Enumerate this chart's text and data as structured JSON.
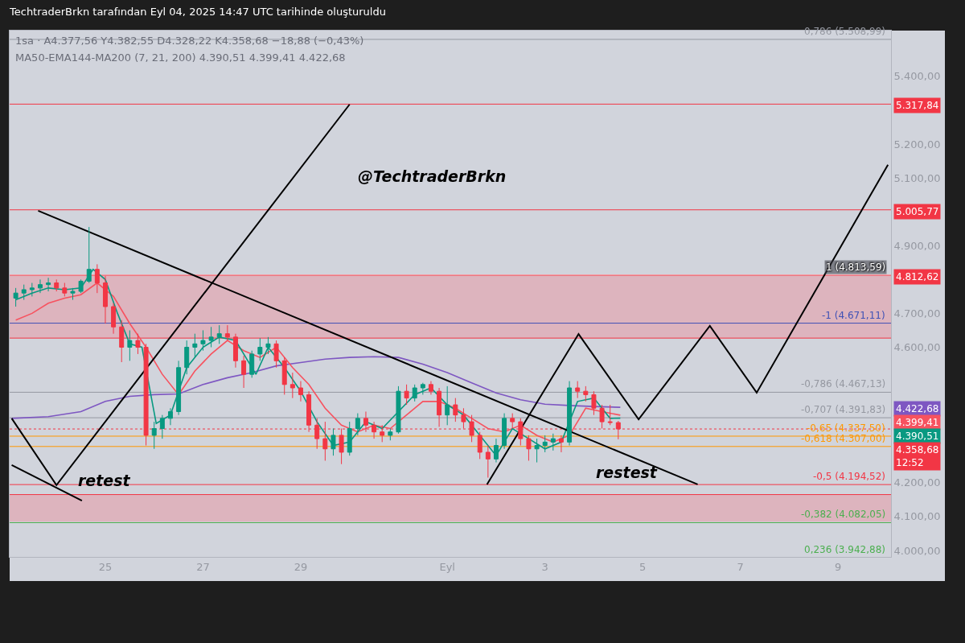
{
  "chart_data": {
    "type": "candlestick",
    "title": "TechtraderBrkn tarafından Eyl 04, 2025 14:47 UTC tarihinde oluşturuldu",
    "x": [
      "2025-08-23T04:00",
      "2025-08-23T08:00",
      "2025-08-23T12:00",
      "2025-08-23T16:00",
      "2025-08-23T20:00",
      "2025-08-24T00:00",
      "2025-08-24T04:00",
      "2025-08-24T08:00",
      "2025-08-24T12:00",
      "2025-08-24T16:00",
      "2025-08-24T20:00",
      "2025-08-25T00:00",
      "2025-08-25T04:00",
      "2025-08-25T08:00",
      "2025-08-25T12:00",
      "2025-08-25T16:00",
      "2025-08-25T20:00",
      "2025-08-26T00:00",
      "2025-08-26T04:00",
      "2025-08-26T08:00",
      "2025-08-26T12:00",
      "2025-08-26T16:00",
      "2025-08-26T20:00",
      "2025-08-27T00:00",
      "2025-08-27T04:00",
      "2025-08-27T08:00",
      "2025-08-27T12:00",
      "2025-08-27T16:00",
      "2025-08-27T20:00",
      "2025-08-28T00:00",
      "2025-08-28T04:00",
      "2025-08-28T08:00",
      "2025-08-28T12:00",
      "2025-08-28T16:00",
      "2025-08-28T20:00",
      "2025-08-29T00:00",
      "2025-08-29T04:00",
      "2025-08-29T08:00",
      "2025-08-29T12:00",
      "2025-08-29T16:00",
      "2025-08-29T20:00",
      "2025-08-30T00:00",
      "2025-08-30T04:00",
      "2025-08-30T08:00",
      "2025-08-30T12:00",
      "2025-08-30T16:00",
      "2025-08-30T20:00",
      "2025-08-31T00:00",
      "2025-08-31T04:00",
      "2025-08-31T08:00",
      "2025-08-31T12:00",
      "2025-08-31T16:00",
      "2025-08-31T20:00",
      "2025-09-01T00:00",
      "2025-09-01T04:00",
      "2025-09-01T08:00",
      "2025-09-01T12:00",
      "2025-09-01T16:00",
      "2025-09-01T20:00",
      "2025-09-02T00:00",
      "2025-09-02T04:00",
      "2025-09-02T08:00",
      "2025-09-02T12:00",
      "2025-09-02T16:00",
      "2025-09-02T20:00",
      "2025-09-03T00:00",
      "2025-09-03T04:00",
      "2025-09-03T08:00",
      "2025-09-03T12:00",
      "2025-09-03T16:00",
      "2025-09-03T20:00",
      "2025-09-04T00:00",
      "2025-09-04T04:00",
      "2025-09-04T08:00",
      "2025-09-04T12:00"
    ],
    "ohlc": [
      [
        4745,
        4775,
        4720,
        4760
      ],
      [
        4760,
        4785,
        4740,
        4770
      ],
      [
        4770,
        4790,
        4750,
        4775
      ],
      [
        4775,
        4800,
        4760,
        4785
      ],
      [
        4785,
        4805,
        4765,
        4790
      ],
      [
        4790,
        4800,
        4765,
        4775
      ],
      [
        4775,
        4790,
        4750,
        4760
      ],
      [
        4760,
        4775,
        4740,
        4765
      ],
      [
        4765,
        4800,
        4760,
        4795
      ],
      [
        4795,
        4955,
        4790,
        4830
      ],
      [
        4830,
        4845,
        4760,
        4790
      ],
      [
        4790,
        4810,
        4670,
        4720
      ],
      [
        4720,
        4730,
        4640,
        4660
      ],
      [
        4660,
        4680,
        4556,
        4600
      ],
      [
        4600,
        4650,
        4560,
        4620
      ],
      [
        4620,
        4640,
        4580,
        4600
      ],
      [
        4600,
        4610,
        4310,
        4340
      ],
      [
        4340,
        4380,
        4300,
        4360
      ],
      [
        4360,
        4400,
        4330,
        4390
      ],
      [
        4390,
        4420,
        4370,
        4410
      ],
      [
        4410,
        4560,
        4400,
        4540
      ],
      [
        4540,
        4620,
        4520,
        4600
      ],
      [
        4600,
        4640,
        4570,
        4610
      ],
      [
        4610,
        4650,
        4590,
        4620
      ],
      [
        4620,
        4660,
        4600,
        4630
      ],
      [
        4630,
        4665,
        4610,
        4640
      ],
      [
        4640,
        4665,
        4620,
        4630
      ],
      [
        4630,
        4640,
        4540,
        4560
      ],
      [
        4560,
        4575,
        4480,
        4520
      ],
      [
        4520,
        4590,
        4510,
        4580
      ],
      [
        4580,
        4627,
        4560,
        4600
      ],
      [
        4600,
        4630,
        4580,
        4610
      ],
      [
        4610,
        4620,
        4540,
        4560
      ],
      [
        4560,
        4570,
        4460,
        4490
      ],
      [
        4490,
        4525,
        4450,
        4480
      ],
      [
        4480,
        4500,
        4440,
        4460
      ],
      [
        4460,
        4470,
        4350,
        4370
      ],
      [
        4370,
        4390,
        4300,
        4330
      ],
      [
        4330,
        4380,
        4265,
        4300
      ],
      [
        4300,
        4360,
        4280,
        4340
      ],
      [
        4340,
        4360,
        4255,
        4290
      ],
      [
        4290,
        4380,
        4280,
        4360
      ],
      [
        4360,
        4405,
        4340,
        4390
      ],
      [
        4390,
        4410,
        4350,
        4370
      ],
      [
        4370,
        4380,
        4330,
        4350
      ],
      [
        4350,
        4370,
        4320,
        4340
      ],
      [
        4340,
        4360,
        4325,
        4350
      ],
      [
        4350,
        4485,
        4345,
        4470
      ],
      [
        4470,
        4490,
        4430,
        4450
      ],
      [
        4450,
        4490,
        4440,
        4480
      ],
      [
        4480,
        4495,
        4460,
        4490
      ],
      [
        4490,
        4500,
        4460,
        4470
      ],
      [
        4470,
        4480,
        4365,
        4400
      ],
      [
        4400,
        4485,
        4370,
        4430
      ],
      [
        4430,
        4450,
        4380,
        4400
      ],
      [
        4400,
        4420,
        4360,
        4380
      ],
      [
        4380,
        4400,
        4320,
        4340
      ],
      [
        4340,
        4350,
        4270,
        4290
      ],
      [
        4290,
        4310,
        4215,
        4270
      ],
      [
        4270,
        4330,
        4260,
        4310
      ],
      [
        4310,
        4405,
        4300,
        4390
      ],
      [
        4390,
        4405,
        4360,
        4380
      ],
      [
        4380,
        4390,
        4310,
        4330
      ],
      [
        4330,
        4340,
        4265,
        4300
      ],
      [
        4300,
        4330,
        4260,
        4310
      ],
      [
        4310,
        4340,
        4290,
        4320
      ],
      [
        4320,
        4345,
        4295,
        4330
      ],
      [
        4330,
        4340,
        4290,
        4320
      ],
      [
        4320,
        4500,
        4310,
        4480
      ],
      [
        4480,
        4500,
        4450,
        4470
      ],
      [
        4470,
        4485,
        4440,
        4460
      ],
      [
        4460,
        4470,
        4400,
        4420
      ],
      [
        4420,
        4430,
        4360,
        4380
      ],
      [
        4380,
        4430,
        4370,
        4378
      ],
      [
        4377.56,
        4382.55,
        4328.22,
        4358.68
      ]
    ],
    "series": [
      {
        "type": "line",
        "color": "#7e57c2",
        "x": [
          "2025-08-23T02:00",
          "2025-08-23T20:00",
          "2025-08-24T12:00",
          "2025-08-25T00:00",
          "2025-08-25T12:00",
          "2025-08-26T00:00",
          "2025-08-26T12:00",
          "2025-08-27T00:00",
          "2025-08-27T12:00",
          "2025-08-28T00:00",
          "2025-08-28T12:00",
          "2025-08-29T00:00",
          "2025-08-29T12:00",
          "2025-08-30T00:00",
          "2025-08-30T12:00",
          "2025-08-31T00:00",
          "2025-08-31T12:00",
          "2025-09-01T00:00",
          "2025-09-01T12:00",
          "2025-09-02T00:00",
          "2025-09-02T12:00",
          "2025-09-03T00:00",
          "2025-09-03T12:00",
          "2025-09-04T00:00",
          "2025-09-04T13:00"
        ],
        "values": [
          4390,
          4395,
          4410,
          4440,
          4455,
          4460,
          4462,
          4490,
          4510,
          4525,
          4545,
          4555,
          4565,
          4570,
          4572,
          4570,
          4550,
          4525,
          4495,
          4465,
          4445,
          4432,
          4428,
          4425,
          4422.68
        ]
      },
      {
        "type": "line",
        "color": "#f7525f",
        "x": [
          "2025-08-23T04:00",
          "2025-08-23T12:00",
          "2025-08-23T20:00",
          "2025-08-24T04:00",
          "2025-08-24T12:00",
          "2025-08-24T20:00",
          "2025-08-25T04:00",
          "2025-08-25T12:00",
          "2025-08-25T20:00",
          "2025-08-26T04:00",
          "2025-08-26T12:00",
          "2025-08-26T20:00",
          "2025-08-27T04:00",
          "2025-08-27T12:00",
          "2025-08-27T20:00",
          "2025-08-28T04:00",
          "2025-08-28T12:00",
          "2025-08-28T20:00",
          "2025-08-29T04:00",
          "2025-08-29T12:00",
          "2025-08-29T20:00",
          "2025-08-30T04:00",
          "2025-08-30T12:00",
          "2025-08-30T20:00",
          "2025-08-31T04:00",
          "2025-08-31T12:00",
          "2025-08-31T20:00",
          "2025-09-01T04:00",
          "2025-09-01T12:00",
          "2025-09-01T20:00",
          "2025-09-02T04:00",
          "2025-09-02T12:00",
          "2025-09-02T20:00",
          "2025-09-03T04:00",
          "2025-09-03T12:00",
          "2025-09-03T20:00",
          "2025-09-04T04:00",
          "2025-09-04T13:00"
        ],
        "values": [
          4680,
          4700,
          4730,
          4745,
          4755,
          4790,
          4750,
          4670,
          4600,
          4520,
          4460,
          4530,
          4580,
          4620,
          4590,
          4570,
          4600,
          4540,
          4490,
          4420,
          4370,
          4350,
          4370,
          4360,
          4400,
          4440,
          4440,
          4420,
          4390,
          4360,
          4350,
          4370,
          4340,
          4320,
          4340,
          4420,
          4410,
          4399.41
        ]
      },
      {
        "type": "line",
        "color": "#089981",
        "x": [
          "2025-08-23T04:00",
          "2025-08-23T12:00",
          "2025-08-23T20:00",
          "2025-08-24T04:00",
          "2025-08-24T12:00",
          "2025-08-24T18:00",
          "2025-08-25T00:00",
          "2025-08-25T06:00",
          "2025-08-25T12:00",
          "2025-08-25T18:00",
          "2025-08-26T01:00",
          "2025-08-26T08:00",
          "2025-08-26T16:00",
          "2025-08-27T00:00",
          "2025-08-27T08:00",
          "2025-08-27T16:00",
          "2025-08-28T02:00",
          "2025-08-28T08:00",
          "2025-08-28T16:00",
          "2025-08-29T00:00",
          "2025-08-29T08:00",
          "2025-08-29T16:00",
          "2025-08-30T00:00",
          "2025-08-30T08:00",
          "2025-08-30T16:00",
          "2025-08-31T00:00",
          "2025-08-31T08:00",
          "2025-08-31T16:00",
          "2025-09-01T00:00",
          "2025-09-01T08:00",
          "2025-09-01T16:00",
          "2025-09-02T00:00",
          "2025-09-02T08:00",
          "2025-09-02T16:00",
          "2025-09-03T00:00",
          "2025-09-03T08:00",
          "2025-09-03T16:00",
          "2025-09-04T00:00",
          "2025-09-04T08:00",
          "2025-09-04T13:00"
        ],
        "values": [
          4740,
          4760,
          4775,
          4770,
          4775,
          4830,
          4800,
          4700,
          4610,
          4600,
          4375,
          4400,
          4540,
          4600,
          4630,
          4620,
          4520,
          4600,
          4540,
          4470,
          4380,
          4310,
          4320,
          4380,
          4360,
          4410,
          4460,
          4480,
          4430,
          4400,
          4340,
          4280,
          4360,
          4330,
          4300,
          4320,
          4440,
          4450,
          4390,
          4390.51
        ]
      },
      {
        "type": "line",
        "color": "#000000",
        "x": [
          "2025-08-23T15:00",
          "2025-09-06T03:00"
        ],
        "values": [
          5003,
          4195
        ]
      },
      {
        "type": "line",
        "color": "#000000",
        "x": [
          "2025-08-23T02:00",
          "2025-08-24T12:30"
        ],
        "values": [
          4252,
          4147
        ]
      },
      {
        "type": "line",
        "color": "#000000",
        "x": [
          "2025-08-23T02:00",
          "2025-08-24T00:00",
          "2025-08-30T00:00"
        ],
        "values": [
          4390,
          4193,
          5317
        ]
      },
      {
        "type": "line",
        "color": "#000000",
        "x": [
          "2025-09-01T19:30",
          "2025-09-03T16:30",
          "2025-09-04T22:00",
          "2025-09-06T09:00",
          "2025-09-07T08:00",
          "2025-09-10T00:30"
        ],
        "values": [
          4195,
          4639,
          4387,
          4663,
          4466,
          5139
        ]
      }
    ],
    "xlim": [
      "2025-08-23T01:00",
      "2025-09-10T02:00"
    ],
    "xticks": [
      {
        "value": "2025-08-25",
        "label": "25"
      },
      {
        "value": "2025-08-27",
        "label": "27"
      },
      {
        "value": "2025-08-29",
        "label": "29"
      },
      {
        "value": "2025-09-01",
        "label": "Eyl"
      },
      {
        "value": "2025-09-03",
        "label": "3"
      },
      {
        "value": "2025-09-05",
        "label": "5"
      },
      {
        "value": "2025-09-07",
        "label": "7"
      },
      {
        "value": "2025-09-09",
        "label": "9"
      }
    ],
    "ylim": [
      3981,
      5535
    ],
    "yticks": [
      {
        "value": 4000,
        "label": "4.000,00"
      },
      {
        "value": 4100,
        "label": "4.100,00"
      },
      {
        "value": 4200,
        "label": "4.200,00"
      },
      {
        "value": 4600,
        "label": "4.600,00"
      },
      {
        "value": 4700,
        "label": "4.700,00"
      },
      {
        "value": 4900,
        "label": "4.900,00"
      },
      {
        "value": 5100,
        "label": "5.100,00"
      },
      {
        "value": 5200,
        "label": "5.200,00"
      },
      {
        "value": 5400,
        "label": "5.400,00"
      }
    ],
    "ref_lines": [
      {
        "axis": "y",
        "value": 5508.99,
        "label": "0,786 (5.508,99)",
        "color": "#9598a1"
      },
      {
        "axis": "y",
        "value": 5317.84,
        "label": "5.317,84",
        "color": "#f23645"
      },
      {
        "axis": "y",
        "value": 5005.77,
        "label": "5.005,77",
        "color": "#f23645"
      },
      {
        "axis": "y",
        "value": 4813.59,
        "label": "1 (4.813,59)",
        "color": "#ffffff"
      },
      {
        "axis": "y",
        "value": 4812.62,
        "label": "4.812,62",
        "color": "#f23645"
      },
      {
        "axis": "y",
        "value": 4671.11,
        "label": "-1 (4.671,11)",
        "color": "#3f51b5"
      },
      {
        "axis": "y",
        "value": 4627,
        "color": "#f23645"
      },
      {
        "axis": "y",
        "value": 4467.13,
        "label": "-0,786 (4.467,13)",
        "color": "#9598a1"
      },
      {
        "axis": "y",
        "value": 4391.83,
        "label": "-0,707 (4.391,83)",
        "color": "#9598a1"
      },
      {
        "axis": "y",
        "value": 4358.68,
        "label": "4.358,68\n12:52",
        "color": "#f23645",
        "line_style": "dotted"
      },
      {
        "axis": "y",
        "value": 4337.5,
        "label": "-0,65 (4.337,50)",
        "color": "#ff9800"
      },
      {
        "axis": "y",
        "value": 4307.0,
        "label": "-0,618 (4.307,00)",
        "color": "#ff9800"
      },
      {
        "axis": "y",
        "value": 4194.52,
        "label": "-0,5 (4.194,52)",
        "color": "#f23645"
      },
      {
        "axis": "y",
        "value": 4165,
        "color": "#f23645"
      },
      {
        "axis": "y",
        "value": 4082.05,
        "label": "-0,382 (4.082,05)",
        "color": "#4caf50"
      }
    ],
    "bands": [
      {
        "axis": "y",
        "from": 4627,
        "to": 4812.62,
        "color": "#e3a6b0"
      },
      {
        "axis": "y",
        "from": 4085,
        "to": 4165,
        "color": "#e3a6b0"
      }
    ],
    "annotations": [
      "1sa · A4.377,56 Y4.382,55 D4.328,22 K4.358,68 −18,88 (−0,43%)",
      "MA50-EMA144-MA200 (7, 21, 200) 4.390,51 4.399,41 4.422,68",
      "0,236 (3.942,88)",
      "retest",
      "restest",
      "@TechtraderBrkn",
      "4.422,68",
      "4.399,41",
      "4.390,51"
    ]
  }
}
